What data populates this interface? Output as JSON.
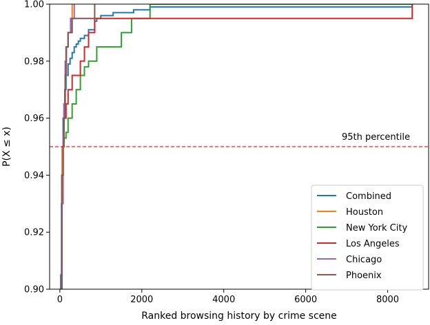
{
  "chart_data": {
    "type": "line",
    "title": "",
    "xlabel": "Ranked browsing history by crime scene",
    "ylabel": "P(X ≤ x)",
    "xlim": [
      -250,
      9000
    ],
    "ylim": [
      0.9,
      1.0
    ],
    "xticks": [
      0,
      2000,
      4000,
      6000,
      8000
    ],
    "xtick_labels": [
      "0",
      "2000",
      "4000",
      "6000",
      "8000"
    ],
    "yticks": [
      0.9,
      0.92,
      0.94,
      0.96,
      0.98,
      1.0
    ],
    "ytick_labels": [
      "0.90",
      "0.92",
      "0.94",
      "0.96",
      "0.98",
      "1.00"
    ],
    "grid": false,
    "legend_position": "lower right",
    "reference_line": {
      "y": 0.95,
      "label": "95th percentile",
      "color": "#d62728",
      "style": "dashed"
    },
    "series": [
      {
        "name": "Combined",
        "color": "#1f77b4",
        "x": [
          20,
          40,
          60,
          80,
          100,
          120,
          150,
          200,
          250,
          300,
          350,
          400,
          450,
          500,
          600,
          700,
          850,
          900,
          1000,
          1300,
          1500,
          1800,
          2200,
          8600
        ],
        "y": [
          0.905,
          0.93,
          0.95,
          0.96,
          0.965,
          0.97,
          0.975,
          0.979,
          0.981,
          0.983,
          0.985,
          0.986,
          0.987,
          0.988,
          0.989,
          0.991,
          0.994,
          0.995,
          0.996,
          0.997,
          0.997,
          0.998,
          0.999,
          1.0
        ]
      },
      {
        "name": "Houston",
        "color": "#ff7f0e",
        "x": [
          50,
          70,
          100,
          130,
          160,
          200,
          260,
          300
        ],
        "y": [
          0.94,
          0.95,
          0.96,
          0.975,
          0.985,
          0.99,
          0.995,
          1.0
        ]
      },
      {
        "name": "New York City",
        "color": "#2ca02c",
        "x": [
          50,
          80,
          100,
          150,
          200,
          300,
          400,
          500,
          600,
          700,
          900,
          1000,
          1500,
          1750,
          2200,
          8600
        ],
        "y": [
          0.94,
          0.95,
          0.953,
          0.955,
          0.96,
          0.965,
          0.97,
          0.975,
          0.978,
          0.98,
          0.985,
          0.985,
          0.99,
          0.995,
          1.0,
          1.0
        ]
      },
      {
        "name": "Los Angeles",
        "color": "#d62728",
        "x": [
          50,
          80,
          100,
          150,
          200,
          300,
          400,
          500,
          600,
          700,
          850,
          1000,
          8600
        ],
        "y": [
          0.94,
          0.95,
          0.96,
          0.965,
          0.97,
          0.975,
          0.975,
          0.98,
          0.985,
          0.99,
          0.995,
          0.995,
          1.0
        ]
      },
      {
        "name": "Chicago",
        "color": "#9467bd",
        "x": [
          30,
          50,
          80,
          100,
          130,
          160,
          200,
          270,
          350
        ],
        "y": [
          0.9,
          0.93,
          0.955,
          0.965,
          0.98,
          0.985,
          0.99,
          0.995,
          1.0
        ]
      },
      {
        "name": "Phoenix",
        "color": "#8c564b",
        "x": [
          30,
          50,
          80,
          100,
          130,
          150,
          200,
          300,
          850
        ],
        "y": [
          0.9,
          0.94,
          0.95,
          0.96,
          0.975,
          0.985,
          0.99,
          0.995,
          1.0
        ]
      }
    ]
  }
}
